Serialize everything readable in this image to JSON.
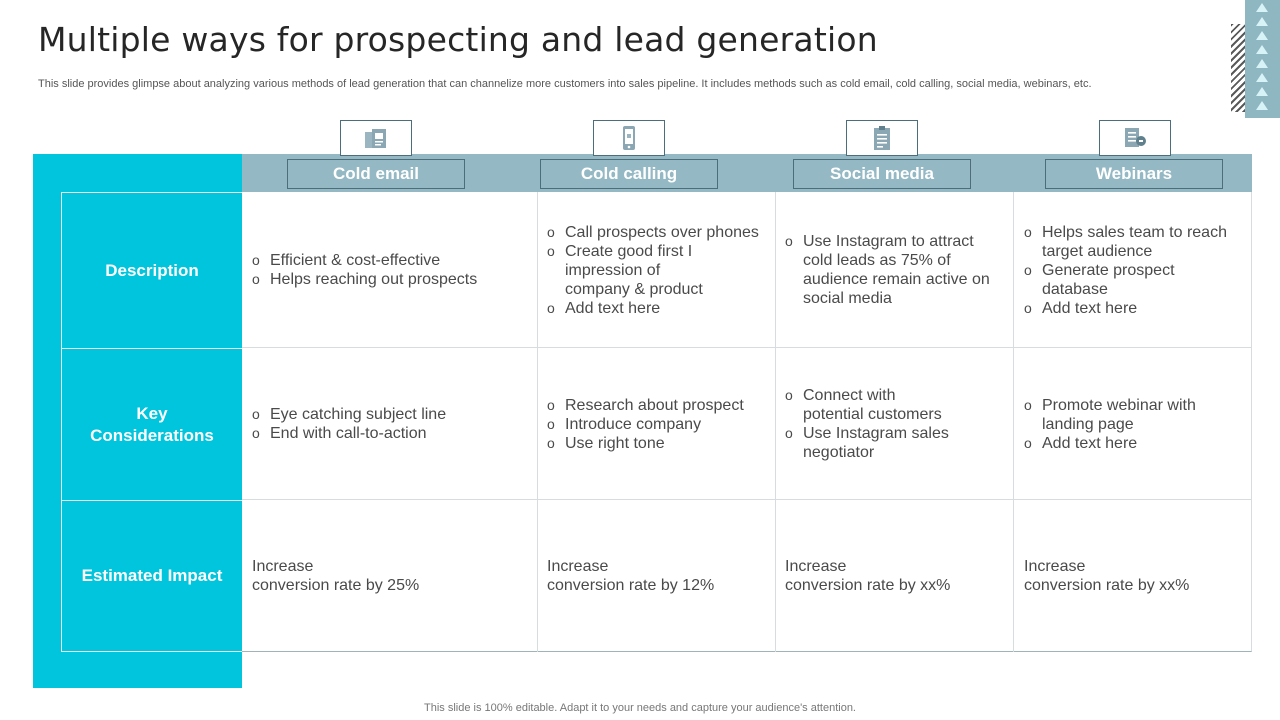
{
  "slide": {
    "title": "Multiple ways for prospecting and lead generation",
    "subtitle": "This slide provides glimpse about analyzing various methods of lead generation that can channelize more customers into sales pipeline. It includes methods such as cold email, cold calling, social media, webinars, etc.",
    "footer": "This slide is 100% editable. Adapt it to your needs and capture your audience's attention."
  },
  "colors": {
    "accent_cyan": "#00c5dd",
    "header_blue_gray": "#95b9c4",
    "border_dark": "#4c6e7a"
  },
  "table": {
    "columns": [
      {
        "label": "Cold email",
        "icon": "email-document-icon"
      },
      {
        "label": "Cold calling",
        "icon": "mobile-phone-icon"
      },
      {
        "label": "Social media",
        "icon": "clipboard-icon"
      },
      {
        "label": "Webinars",
        "icon": "presentation-screen-icon"
      }
    ],
    "rows": [
      {
        "label": "Description",
        "cells": [
          [
            "Efficient & cost-effective",
            "Helps reaching out prospects"
          ],
          [
            "Call prospects over phones",
            "Create good first I impression of company & product",
            "Add text here"
          ],
          [
            "Use Instagram to attract cold leads as 75% of audience remain active on social media"
          ],
          [
            "Helps sales team to reach target audience",
            "Generate prospect database",
            "Add text here"
          ]
        ]
      },
      {
        "label": "Key Considerations",
        "cells": [
          [
            "Eye catching subject line",
            "End with call-to-action"
          ],
          [
            "Research about prospect",
            "Introduce company",
            "Use right tone"
          ],
          [
            "Connect with potential customers",
            "Use Instagram sales negotiator"
          ],
          [
            "Promote webinar with landing page",
            "Add text here"
          ]
        ]
      },
      {
        "label": "Estimated Impact",
        "cells": [
          "Increase\nconversion rate by 25%",
          "Increase\nconversion rate by 12%",
          "Increase\nconversion rate by xx%",
          "Increase\nconversion rate by xx%"
        ]
      }
    ]
  }
}
